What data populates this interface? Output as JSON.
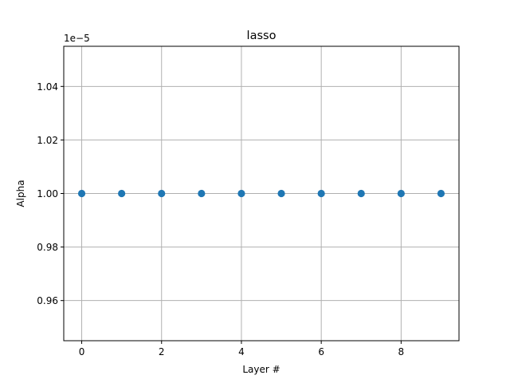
{
  "chart_data": {
    "type": "scatter",
    "title": "lasso",
    "xlabel": "Layer #",
    "ylabel": "Alpha",
    "y_offset_label": "1e−5",
    "x": [
      0,
      1,
      2,
      3,
      4,
      5,
      6,
      7,
      8,
      9
    ],
    "y": [
      1e-05,
      1e-05,
      1e-05,
      1e-05,
      1e-05,
      1e-05,
      1e-05,
      1e-05,
      1e-05,
      1e-05
    ],
    "xlim": [
      -0.45,
      9.45
    ],
    "ylim": [
      9.45e-06,
      1.055e-05
    ],
    "xticks": [
      0,
      2,
      4,
      6,
      8
    ],
    "xtick_labels": [
      "0",
      "2",
      "4",
      "6",
      "8"
    ],
    "yticks": [
      9.6e-06,
      9.8e-06,
      1e-05,
      1.02e-05,
      1.04e-05
    ],
    "ytick_labels": [
      "0.96",
      "0.98",
      "1.00",
      "1.02",
      "1.04"
    ],
    "grid": true,
    "marker_color": "#1f77b4"
  }
}
